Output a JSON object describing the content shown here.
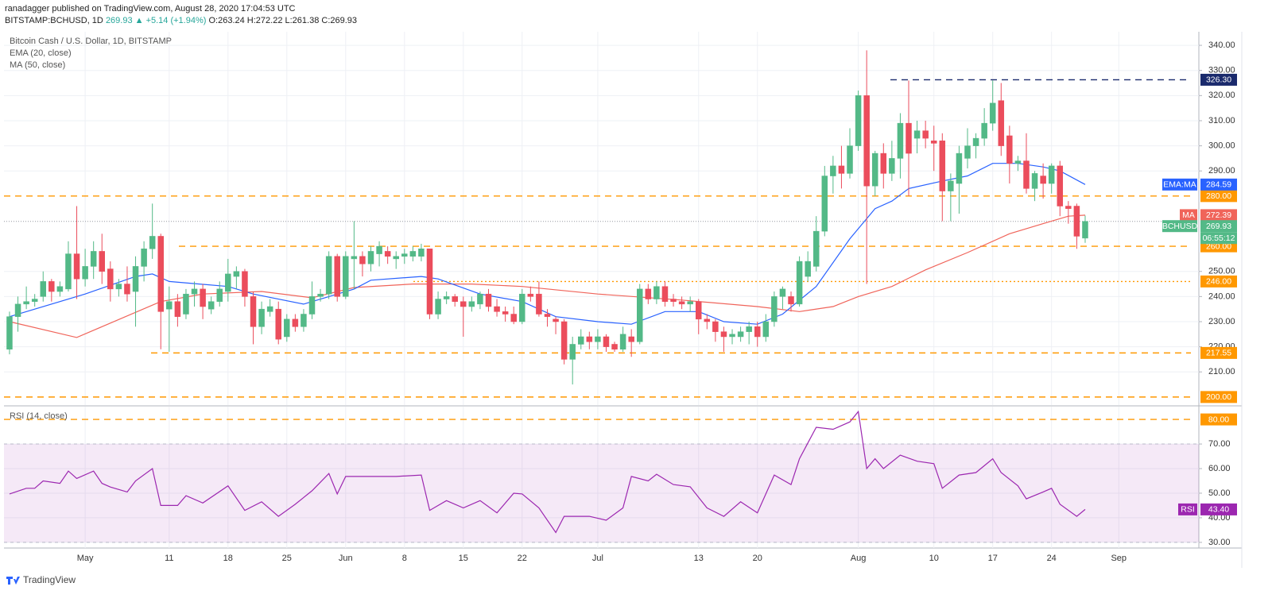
{
  "header": {
    "author_line": "ranadagger published on TradingView.com, August 28, 2020 17:04:53 UTC",
    "symbol": "BITSTAMP:BCHUSD, 1D",
    "change": "269.93 ▲ +5.14 (+1.94%)",
    "ohlc": "O:263.24 H:272.22 L:261.38 C:269.93"
  },
  "footer": {
    "brand": "TradingView"
  },
  "chart_data": [
    {
      "type": "candlestick",
      "title": "Bitcoin Cash / U.S. Dollar, 1D, BITSTAMP",
      "grid": true,
      "xlim": [
        -0.66,
        141.53
      ],
      "xticks": [
        {
          "value": 9,
          "label": "May"
        },
        {
          "value": 19,
          "label": "11"
        },
        {
          "value": 26,
          "label": "18"
        },
        {
          "value": 33,
          "label": "25"
        },
        {
          "value": 40,
          "label": "Jun"
        },
        {
          "value": 47,
          "label": "8"
        },
        {
          "value": 54,
          "label": "15"
        },
        {
          "value": 61,
          "label": "22"
        },
        {
          "value": 70,
          "label": "Jul"
        },
        {
          "value": 82,
          "label": "13"
        },
        {
          "value": 89,
          "label": "20"
        },
        {
          "value": 101,
          "label": "Aug"
        },
        {
          "value": 110,
          "label": "10"
        },
        {
          "value": 117,
          "label": "17"
        },
        {
          "value": 124,
          "label": "24"
        },
        {
          "value": 132,
          "label": "Sep"
        }
      ],
      "ylim": [
        196.8,
        345.4
      ],
      "yticks": [
        {
          "value": 340,
          "label": "340.00"
        },
        {
          "value": 330,
          "label": "330.00"
        },
        {
          "value": 320,
          "label": "320.00"
        },
        {
          "value": 310,
          "label": "310.00"
        },
        {
          "value": 300,
          "label": "300.00"
        },
        {
          "value": 290,
          "label": "290.00"
        },
        {
          "value": 250,
          "label": "250.00"
        },
        {
          "value": 240,
          "label": "240.00"
        },
        {
          "value": 230,
          "label": "230.00"
        },
        {
          "value": 220,
          "label": "220.00"
        },
        {
          "value": 210,
          "label": "210.00"
        }
      ],
      "candles": {
        "up_color": "#53b987",
        "down_color": "#eb4d5c",
        "open": [
          219,
          232,
          237,
          238,
          240,
          246,
          242,
          243,
          257,
          247,
          252,
          258,
          251,
          243,
          245,
          242,
          252,
          259,
          264,
          235,
          238,
          233,
          241,
          243,
          235,
          238,
          242,
          248,
          250,
          240,
          228,
          234,
          235,
          224,
          231,
          228,
          233,
          240,
          241,
          256,
          240,
          255,
          256,
          253,
          257,
          258,
          255,
          256,
          256,
          256,
          259,
          233,
          239,
          240,
          238,
          236,
          237,
          241,
          236,
          234,
          233,
          230,
          241,
          241,
          233,
          231,
          230,
          215,
          221,
          224,
          222,
          224,
          221,
          219,
          224,
          222,
          243,
          239,
          244,
          239,
          238,
          237,
          238,
          231,
          230,
          226,
          224,
          224,
          226,
          228,
          224,
          230,
          240,
          240,
          237,
          248,
          252,
          266,
          288,
          292,
          289,
          300,
          320,
          284,
          297,
          289,
          295,
          309,
          303,
          306,
          302,
          302,
          282,
          285,
          295,
          300,
          303,
          309,
          318,
          304,
          293,
          294,
          283,
          288,
          285,
          292,
          276,
          276,
          263.24
        ],
        "high": [
          234,
          240,
          244,
          241,
          250,
          247,
          246,
          262,
          276,
          259,
          262,
          265,
          254,
          247,
          252,
          256,
          262,
          277,
          265,
          244,
          241,
          243,
          246,
          245,
          240,
          246,
          255,
          252,
          251,
          242,
          238,
          239,
          238,
          233,
          233,
          235,
          246,
          243,
          258,
          257,
          258,
          270,
          258,
          260,
          262,
          260,
          258,
          259,
          260,
          261,
          259,
          242,
          242,
          241,
          240,
          240,
          242,
          243,
          239,
          236,
          236,
          243,
          244,
          246,
          235,
          232,
          231,
          224,
          227,
          226,
          227,
          225,
          222,
          228,
          227,
          245,
          245,
          246,
          246,
          241,
          240,
          240,
          239,
          233,
          231,
          228,
          227,
          228,
          230,
          230,
          233,
          242,
          244,
          242,
          256,
          258,
          272,
          292,
          296,
          300,
          307,
          322,
          338,
          298,
          301,
          302,
          313,
          326,
          310,
          310,
          308,
          305,
          289,
          300,
          307,
          305,
          315,
          326,
          325,
          308,
          296,
          305,
          290,
          293,
          293,
          294,
          278,
          277,
          272.22
        ],
        "low": [
          217,
          226,
          235,
          236,
          238,
          238,
          240,
          242,
          239,
          244,
          247,
          245,
          238,
          240,
          238,
          228,
          246,
          255,
          219,
          218,
          228,
          231,
          236,
          231,
          233,
          236,
          238,
          243,
          236,
          221,
          225,
          232,
          221,
          222,
          226,
          226,
          231,
          238,
          239,
          238,
          239,
          243,
          248,
          250,
          252,
          253,
          251,
          253,
          254,
          254,
          231,
          231,
          237,
          236,
          224,
          234,
          235,
          234,
          232,
          230,
          229,
          229,
          238,
          232,
          228,
          225,
          213,
          205,
          219,
          219,
          219,
          218,
          218,
          218,
          216,
          221,
          237,
          237,
          236,
          236,
          235,
          234,
          225,
          227,
          222,
          218,
          221,
          222,
          221,
          220,
          222,
          228,
          235,
          234,
          236,
          246,
          250,
          264,
          281,
          283,
          287,
          298,
          245,
          280,
          283,
          286,
          287,
          280,
          297,
          299,
          290,
          270,
          270,
          273,
          291,
          295,
          300,
          306,
          296,
          285,
          290,
          281,
          278,
          279,
          281,
          272,
          269,
          259,
          261.38
        ],
        "close": [
          232,
          237,
          238,
          239,
          246,
          242,
          244,
          257,
          247,
          252,
          258,
          250,
          243,
          245,
          241,
          252,
          259,
          264,
          234,
          238,
          232,
          241,
          243,
          236,
          238,
          243,
          249,
          250,
          240,
          228,
          235,
          236,
          223,
          231,
          228,
          233,
          240,
          241,
          256,
          240,
          256,
          256,
          253,
          258,
          260,
          256,
          256,
          257,
          258,
          259,
          233,
          239,
          240,
          238,
          236,
          238,
          241,
          236,
          234,
          233,
          230,
          241,
          240,
          233,
          232,
          230,
          215,
          221,
          224,
          222,
          224,
          220,
          219,
          225,
          222,
          243,
          239,
          244,
          238,
          238,
          237,
          238,
          231,
          230,
          226,
          224,
          225,
          226,
          228,
          224,
          230,
          240,
          243,
          237,
          254,
          254,
          266,
          288,
          292,
          289,
          300,
          320,
          284,
          297,
          289,
          295,
          309,
          297,
          306,
          303,
          301,
          282,
          286,
          297,
          300,
          303,
          309,
          317,
          300,
          293,
          294,
          283,
          289,
          285,
          292,
          276,
          275,
          264,
          269.93
        ]
      },
      "series": [
        {
          "name": "EMA (20, close)",
          "color": "#2962ff",
          "x": [
            0,
            9,
            15,
            17,
            19,
            26,
            29,
            35,
            38,
            41,
            43,
            49,
            51,
            56,
            61,
            65,
            70,
            74,
            78,
            82,
            85,
            89,
            92,
            96,
            100,
            103,
            105,
            107,
            111,
            114,
            117,
            120,
            123,
            125,
            128
          ],
          "values": [
            232,
            241,
            248,
            249,
            246,
            244,
            241,
            237,
            240,
            243,
            246.5,
            248,
            247,
            241,
            238,
            232,
            230,
            229,
            234,
            234,
            230,
            229,
            233,
            244,
            263,
            275,
            278,
            283,
            286,
            288,
            293,
            293,
            291.6,
            290,
            284.59
          ]
        },
        {
          "name": "MA (50, close)",
          "color": "#f0645a",
          "x": [
            0,
            8,
            11,
            18,
            23,
            30,
            36,
            41,
            48,
            55,
            61,
            70,
            80,
            89,
            94,
            98,
            101,
            105,
            109,
            114,
            119,
            123,
            126,
            128
          ],
          "values": [
            230,
            223.7,
            228,
            238,
            241,
            242,
            239.5,
            243.6,
            245,
            245,
            244,
            241,
            238.6,
            236,
            234,
            236,
            240,
            244,
            250.6,
            257.5,
            265,
            269,
            272,
            272.39
          ]
        }
      ],
      "levels": [
        {
          "value": 326.3,
          "label": "326.30",
          "color": "#1a2a6c",
          "style": "dashed"
        },
        {
          "value": 280,
          "label": "280.00",
          "color": "#ff9800",
          "style": "dashed"
        },
        {
          "value": 260,
          "label": "260.00",
          "color": "#ff9800",
          "style": "dashed"
        },
        {
          "value": 246,
          "label": "246.00",
          "color": "#ff9800",
          "style": "dotted"
        },
        {
          "value": 217.55,
          "label": "217.55",
          "color": "#ff9800",
          "style": "dashed"
        },
        {
          "value": 200,
          "label": "200.00",
          "color": "#ff9800",
          "style": "dashed"
        }
      ],
      "tags": [
        {
          "name": "EMA:MA",
          "value": 284.59,
          "label": "284.59",
          "color": "#2962ff"
        },
        {
          "name": "MA",
          "value": 272.39,
          "label": "272.39",
          "color": "#f0645a"
        }
      ],
      "last_price": {
        "name": "BCHUSD",
        "value": 269.93,
        "label": "269.93",
        "countdown": "06:55:12",
        "color": "#53b987"
      }
    },
    {
      "type": "line",
      "title": "RSI (14, close)",
      "grid": true,
      "ylim": [
        27.7,
        85.2
      ],
      "yticks": [
        {
          "value": 70,
          "label": "70.00"
        },
        {
          "value": 60,
          "label": "60.00"
        },
        {
          "value": 50,
          "label": "50.00"
        },
        {
          "value": 40,
          "label": "40.00"
        },
        {
          "value": 30,
          "label": "30.00"
        }
      ],
      "band": [
        30,
        70
      ],
      "band_color": "#9c27b0",
      "levels": [
        {
          "value": 80,
          "label": "80.00",
          "color": "#ff9800",
          "style": "dashed"
        }
      ],
      "series": [
        {
          "name": "RSI",
          "color": "#9c27b0",
          "x": [
            0,
            2,
            3,
            4,
            6,
            7,
            8,
            10,
            11,
            12,
            14,
            15,
            17,
            18,
            20,
            21,
            23,
            26,
            28,
            30,
            32,
            34,
            36,
            38,
            39,
            40,
            43,
            46,
            49,
            50,
            52,
            54,
            56,
            58,
            60,
            61,
            63,
            65,
            66,
            69,
            71,
            73,
            74,
            76,
            77,
            79,
            81,
            83,
            85,
            87,
            89,
            91,
            93,
            94,
            96,
            98,
            100,
            101,
            102,
            103,
            104,
            106,
            108,
            110,
            111,
            113,
            115,
            117,
            118,
            120,
            121,
            123,
            124,
            125,
            127,
            128
          ],
          "values": [
            49.7,
            52,
            52,
            55,
            54,
            59,
            56,
            59,
            54,
            52.5,
            50.5,
            55,
            60,
            45,
            45,
            49,
            46,
            53,
            43,
            46.5,
            40.6,
            45.5,
            51,
            58,
            49.7,
            56.8,
            56.8,
            56.8,
            57.4,
            43,
            47,
            44,
            47,
            42,
            50,
            49.7,
            44,
            34,
            40.6,
            40.6,
            39,
            44,
            56.8,
            55,
            57.7,
            53.5,
            52.6,
            44,
            40.6,
            46.5,
            42,
            57.4,
            53.5,
            64,
            76.8,
            76,
            79,
            83.2,
            60,
            64,
            60,
            65.5,
            63,
            62,
            52,
            57.4,
            58.4,
            64,
            58.4,
            53,
            47.7,
            50.5,
            52,
            45.5,
            40.6,
            43.4
          ]
        }
      ],
      "tag": {
        "value": 43.4,
        "label": "43.40"
      }
    }
  ]
}
